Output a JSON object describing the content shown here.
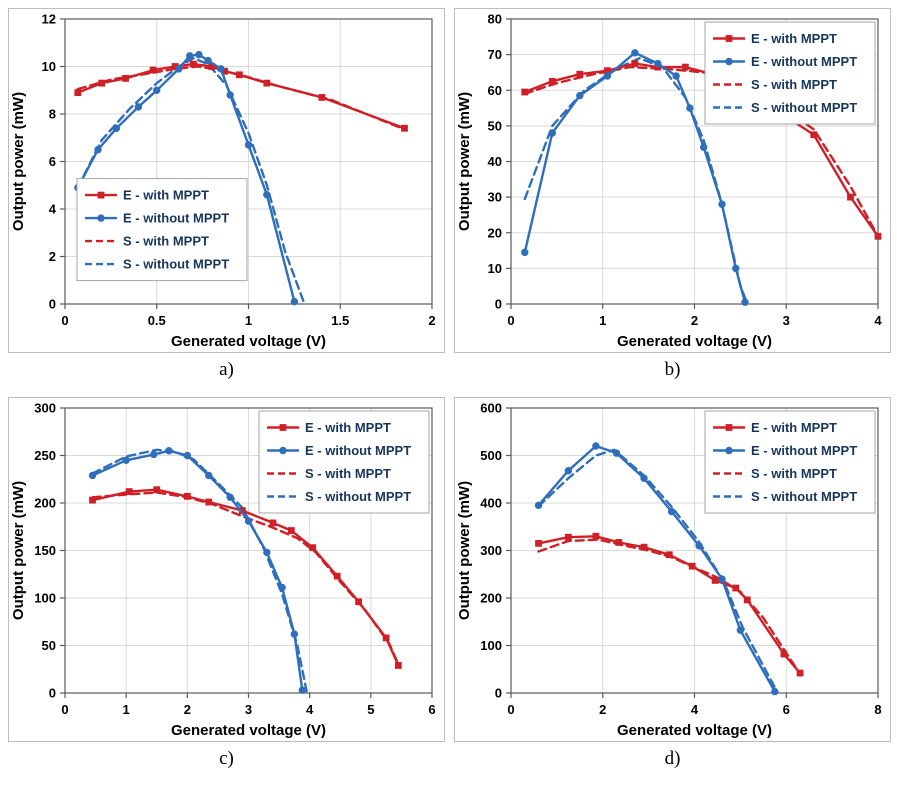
{
  "colors": {
    "red": "#cf2027",
    "blue": "#2f6eba",
    "grid": "#d9d9d9",
    "axis": "#595959",
    "legend_border": "#a6a6a6",
    "legend_text": "#17365d",
    "tick_text": "#000000"
  },
  "panels": [
    {
      "id": "a",
      "label": "a)"
    },
    {
      "id": "b",
      "label": "b)"
    },
    {
      "id": "c",
      "label": "c)"
    },
    {
      "id": "d",
      "label": "d)"
    }
  ],
  "chart_data": [
    {
      "type": "line",
      "panel": "a",
      "xlabel": "Generated voltage (V)",
      "ylabel": "Output power (mW)",
      "xlim": [
        0,
        2
      ],
      "ylim": [
        0,
        12
      ],
      "xticks": [
        0,
        0.5,
        1,
        1.5,
        2
      ],
      "yticks": [
        0,
        2,
        4,
        6,
        8,
        10,
        12
      ],
      "grid": true,
      "legend_pos": "mid-left",
      "series": [
        {
          "name": "E - with MPPT",
          "color": "red",
          "style": "solid",
          "marker": "square",
          "points": [
            [
              0.07,
              8.9
            ],
            [
              0.2,
              9.3
            ],
            [
              0.33,
              9.5
            ],
            [
              0.48,
              9.85
            ],
            [
              0.6,
              10.0
            ],
            [
              0.7,
              10.1
            ],
            [
              0.8,
              10.0
            ],
            [
              0.87,
              9.8
            ],
            [
              0.95,
              9.65
            ],
            [
              1.1,
              9.3
            ],
            [
              1.4,
              8.7
            ],
            [
              1.85,
              7.4
            ]
          ]
        },
        {
          "name": "E - without MPPT",
          "color": "blue",
          "style": "solid",
          "marker": "circle",
          "points": [
            [
              0.07,
              4.9
            ],
            [
              0.18,
              6.5
            ],
            [
              0.28,
              7.4
            ],
            [
              0.4,
              8.3
            ],
            [
              0.5,
              9.0
            ],
            [
              0.62,
              9.9
            ],
            [
              0.68,
              10.45
            ],
            [
              0.73,
              10.5
            ],
            [
              0.78,
              10.25
            ],
            [
              0.85,
              9.9
            ],
            [
              0.9,
              8.8
            ],
            [
              1.0,
              6.7
            ],
            [
              1.1,
              4.6
            ],
            [
              1.25,
              0.1
            ]
          ]
        },
        {
          "name": "S - with MPPT",
          "color": "red",
          "style": "dashed",
          "marker": "none",
          "points": [
            [
              0.07,
              9.05
            ],
            [
              0.25,
              9.45
            ],
            [
              0.45,
              9.7
            ],
            [
              0.6,
              9.9
            ],
            [
              0.72,
              10.0
            ],
            [
              0.85,
              9.85
            ],
            [
              1.0,
              9.55
            ],
            [
              1.15,
              9.2
            ],
            [
              1.45,
              8.6
            ],
            [
              1.85,
              7.35
            ]
          ]
        },
        {
          "name": "S - without MPPT",
          "color": "blue",
          "style": "dashed",
          "marker": "none",
          "points": [
            [
              0.07,
              4.9
            ],
            [
              0.2,
              6.9
            ],
            [
              0.35,
              8.2
            ],
            [
              0.5,
              9.3
            ],
            [
              0.62,
              10.0
            ],
            [
              0.7,
              10.35
            ],
            [
              0.78,
              10.1
            ],
            [
              0.88,
              9.2
            ],
            [
              1.0,
              7.2
            ],
            [
              1.1,
              5.0
            ],
            [
              1.2,
              2.2
            ],
            [
              1.3,
              0.1
            ]
          ]
        }
      ]
    },
    {
      "type": "line",
      "panel": "b",
      "xlabel": "Generated voltage (V)",
      "ylabel": "Output power (mW)",
      "xlim": [
        0,
        4
      ],
      "ylim": [
        0,
        80
      ],
      "xticks": [
        0,
        1,
        2,
        3,
        4
      ],
      "yticks": [
        0,
        10,
        20,
        30,
        40,
        50,
        60,
        70,
        80
      ],
      "grid": true,
      "legend_pos": "top-right",
      "series": [
        {
          "name": "E - with MPPT",
          "color": "red",
          "style": "solid",
          "marker": "square",
          "points": [
            [
              0.15,
              59.5
            ],
            [
              0.45,
              62.5
            ],
            [
              0.75,
              64.5
            ],
            [
              1.05,
              65.5
            ],
            [
              1.35,
              67.5
            ],
            [
              1.6,
              66.5
            ],
            [
              1.9,
              66.5
            ],
            [
              2.2,
              64.5
            ],
            [
              2.8,
              56
            ],
            [
              3.3,
              47.5
            ],
            [
              3.7,
              30
            ],
            [
              4.0,
              19
            ]
          ]
        },
        {
          "name": "E - without MPPT",
          "color": "blue",
          "style": "solid",
          "marker": "circle",
          "points": [
            [
              0.15,
              14.5
            ],
            [
              0.45,
              48
            ],
            [
              0.75,
              58.5
            ],
            [
              1.05,
              64
            ],
            [
              1.35,
              70.5
            ],
            [
              1.6,
              67.5
            ],
            [
              1.8,
              64
            ],
            [
              1.95,
              55
            ],
            [
              2.1,
              44
            ],
            [
              2.3,
              28
            ],
            [
              2.45,
              10
            ],
            [
              2.55,
              0.5
            ]
          ]
        },
        {
          "name": "S - with MPPT",
          "color": "red",
          "style": "dashed",
          "marker": "none",
          "points": [
            [
              0.15,
              59
            ],
            [
              0.5,
              62
            ],
            [
              0.9,
              64.5
            ],
            [
              1.3,
              66.5
            ],
            [
              1.7,
              66
            ],
            [
              2.1,
              65
            ],
            [
              2.5,
              60
            ],
            [
              2.85,
              57
            ],
            [
              3.3,
              49
            ],
            [
              3.7,
              33
            ],
            [
              4.0,
              19
            ]
          ]
        },
        {
          "name": "S - without MPPT",
          "color": "blue",
          "style": "dashed",
          "marker": "none",
          "points": [
            [
              0.15,
              29.5
            ],
            [
              0.45,
              50
            ],
            [
              0.8,
              60
            ],
            [
              1.15,
              66
            ],
            [
              1.4,
              69
            ],
            [
              1.65,
              66.5
            ],
            [
              1.9,
              58
            ],
            [
              2.1,
              46
            ],
            [
              2.3,
              28
            ],
            [
              2.5,
              5
            ],
            [
              2.57,
              0.5
            ]
          ]
        }
      ]
    },
    {
      "type": "line",
      "panel": "c",
      "xlabel": "Generated voltage (V)",
      "ylabel": "Output power (mW)",
      "xlim": [
        0,
        6
      ],
      "ylim": [
        0,
        300
      ],
      "xticks": [
        0,
        1,
        2,
        3,
        4,
        5,
        6
      ],
      "yticks": [
        0,
        50,
        100,
        150,
        200,
        250,
        300
      ],
      "grid": true,
      "legend_pos": "top-right",
      "series": [
        {
          "name": "E - with MPPT",
          "color": "red",
          "style": "solid",
          "marker": "square",
          "points": [
            [
              0.45,
              203
            ],
            [
              1.05,
              212
            ],
            [
              1.5,
              214
            ],
            [
              2.0,
              207
            ],
            [
              2.35,
              201
            ],
            [
              2.9,
              192
            ],
            [
              3.4,
              179
            ],
            [
              3.7,
              171
            ],
            [
              4.05,
              153
            ],
            [
              4.45,
              123
            ],
            [
              4.8,
              96
            ],
            [
              5.25,
              58
            ],
            [
              5.45,
              29
            ]
          ]
        },
        {
          "name": "E - without MPPT",
          "color": "blue",
          "style": "solid",
          "marker": "circle",
          "points": [
            [
              0.45,
              229
            ],
            [
              1.0,
              245
            ],
            [
              1.45,
              251
            ],
            [
              1.7,
              255
            ],
            [
              2.0,
              250
            ],
            [
              2.35,
              229
            ],
            [
              2.7,
              206
            ],
            [
              3.0,
              181
            ],
            [
              3.3,
              148
            ],
            [
              3.55,
              111
            ],
            [
              3.75,
              62
            ],
            [
              3.88,
              3
            ]
          ]
        },
        {
          "name": "S - with MPPT",
          "color": "red",
          "style": "dashed",
          "marker": "none",
          "points": [
            [
              0.45,
              206
            ],
            [
              1.0,
              209
            ],
            [
              1.5,
              211
            ],
            [
              2.0,
              206
            ],
            [
              2.4,
              199
            ],
            [
              2.9,
              186
            ],
            [
              3.4,
              174
            ],
            [
              3.8,
              163
            ],
            [
              4.1,
              148
            ],
            [
              4.5,
              117
            ],
            [
              4.9,
              88
            ],
            [
              5.3,
              52
            ],
            [
              5.45,
              30
            ]
          ]
        },
        {
          "name": "S - without MPPT",
          "color": "blue",
          "style": "dashed",
          "marker": "none",
          "points": [
            [
              0.45,
              231
            ],
            [
              1.0,
              249
            ],
            [
              1.5,
              256
            ],
            [
              1.8,
              254
            ],
            [
              2.1,
              246
            ],
            [
              2.5,
              221
            ],
            [
              2.9,
              195
            ],
            [
              3.25,
              152
            ],
            [
              3.55,
              104
            ],
            [
              3.8,
              50
            ],
            [
              3.95,
              2
            ]
          ]
        }
      ]
    },
    {
      "type": "line",
      "panel": "d",
      "xlabel": "Generated voltage (V)",
      "ylabel": "Output power (mW)",
      "xlim": [
        0,
        8
      ],
      "ylim": [
        0,
        600
      ],
      "xticks": [
        0,
        2,
        4,
        6,
        8
      ],
      "yticks": [
        0,
        100,
        200,
        300,
        400,
        500,
        600
      ],
      "grid": true,
      "legend_pos": "top-right",
      "series": [
        {
          "name": "E - with MPPT",
          "color": "red",
          "style": "solid",
          "marker": "square",
          "points": [
            [
              0.6,
              315
            ],
            [
              1.25,
              328
            ],
            [
              1.85,
              330
            ],
            [
              2.35,
              317
            ],
            [
              2.9,
              307
            ],
            [
              3.45,
              291
            ],
            [
              3.95,
              267
            ],
            [
              4.45,
              237
            ],
            [
              4.9,
              221
            ],
            [
              5.15,
              196
            ],
            [
              5.95,
              82
            ],
            [
              6.3,
              42
            ]
          ]
        },
        {
          "name": "E - without MPPT",
          "color": "blue",
          "style": "solid",
          "marker": "circle",
          "points": [
            [
              0.6,
              395
            ],
            [
              1.25,
              468
            ],
            [
              1.85,
              520
            ],
            [
              2.3,
              505
            ],
            [
              2.9,
              452
            ],
            [
              3.5,
              382
            ],
            [
              4.1,
              310
            ],
            [
              4.6,
              240
            ],
            [
              5.0,
              132
            ],
            [
              5.75,
              3
            ]
          ]
        },
        {
          "name": "S - with MPPT",
          "color": "red",
          "style": "dashed",
          "marker": "none",
          "points": [
            [
              0.6,
              298
            ],
            [
              1.25,
              320
            ],
            [
              1.9,
              323
            ],
            [
              2.4,
              312
            ],
            [
              3.0,
              300
            ],
            [
              3.5,
              286
            ],
            [
              4.0,
              264
            ],
            [
              4.5,
              243
            ],
            [
              5.0,
              213
            ],
            [
              5.5,
              158
            ],
            [
              6.0,
              84
            ],
            [
              6.3,
              40
            ]
          ]
        },
        {
          "name": "S - without MPPT",
          "color": "blue",
          "style": "dashed",
          "marker": "none",
          "points": [
            [
              0.6,
              393
            ],
            [
              1.25,
              452
            ],
            [
              1.85,
              500
            ],
            [
              2.25,
              512
            ],
            [
              2.9,
              458
            ],
            [
              3.5,
              392
            ],
            [
              4.1,
              318
            ],
            [
              4.65,
              232
            ],
            [
              5.05,
              138
            ],
            [
              5.8,
              3
            ]
          ]
        }
      ]
    }
  ]
}
